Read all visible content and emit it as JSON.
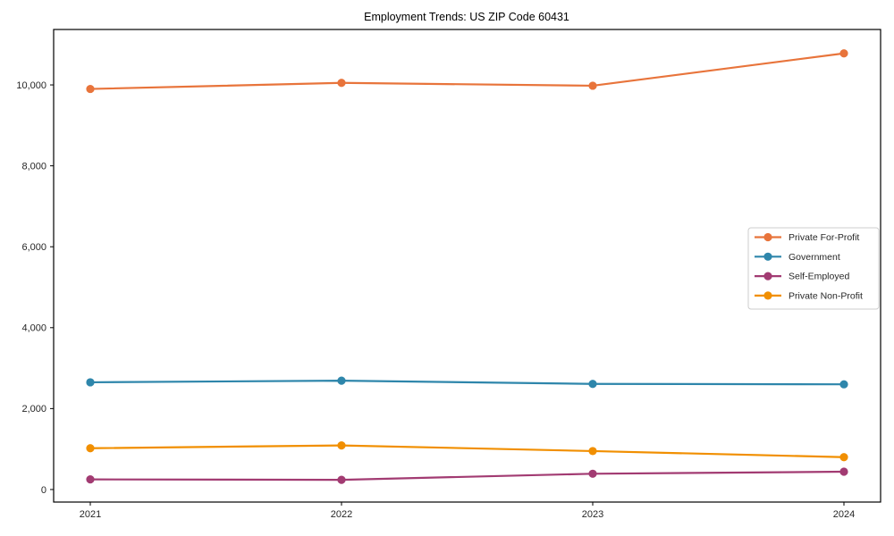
{
  "title": "Employment Trends: US ZIP Code 60431",
  "chart_data": {
    "type": "line",
    "title": "Employment Trends: US ZIP Code 60431",
    "xlabel": "",
    "ylabel": "",
    "x": [
      2021,
      2022,
      2023,
      2024
    ],
    "x_tick_labels": [
      "2021",
      "2022",
      "2023",
      "2024"
    ],
    "series": [
      {
        "name": "Private For-Profit",
        "color": "#E8743B",
        "values": [
          9900,
          10050,
          9980,
          10780
        ]
      },
      {
        "name": "Government",
        "color": "#2E86AB",
        "values": [
          2650,
          2690,
          2610,
          2600
        ]
      },
      {
        "name": "Self-Employed",
        "color": "#A23B72",
        "values": [
          250,
          240,
          390,
          440
        ]
      },
      {
        "name": "Private Non-Profit",
        "color": "#F18F01",
        "values": [
          1020,
          1090,
          950,
          800
        ]
      }
    ],
    "yticks": [
      0,
      2000,
      4000,
      6000,
      8000,
      10000
    ],
    "ytick_labels": [
      "0",
      "2,000",
      "4,000",
      "6,000",
      "8,000",
      "10,000"
    ],
    "ylim": [
      -310,
      11370
    ],
    "grid": false,
    "legend_position": "center right",
    "marker": "circle",
    "background_color": "#ffffff",
    "spine_color": "#000000",
    "legend_border_color": "#cccccc"
  }
}
